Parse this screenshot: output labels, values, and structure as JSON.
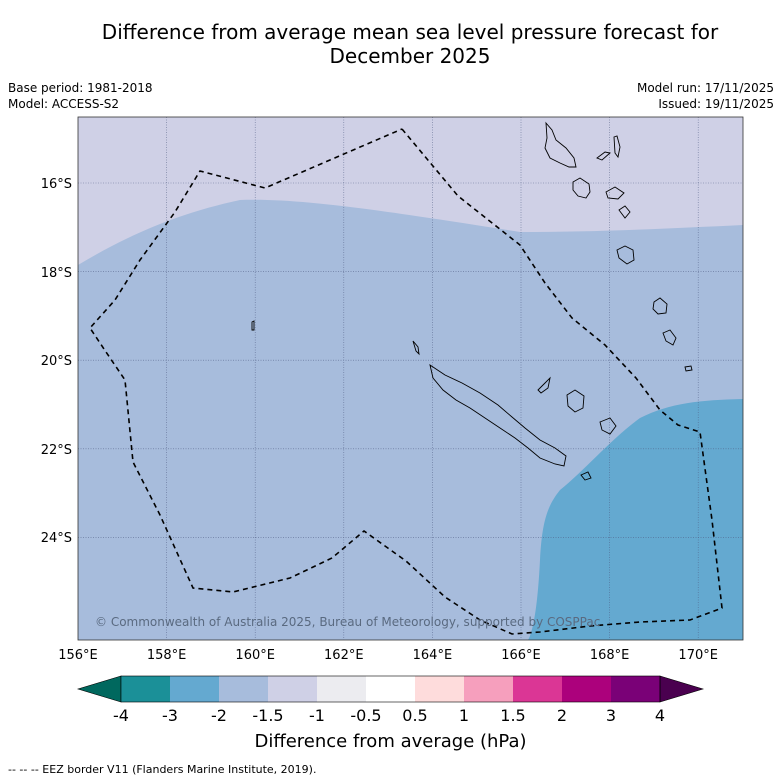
{
  "title_line1": "Difference from average mean sea level pressure forecast for",
  "title_line2": "December 2025",
  "base_period": "Base period: 1981-2018",
  "model": "Model: ACCESS-S2",
  "model_run": "Model run: 17/11/2025",
  "issued": "Issued: 19/11/2025",
  "copyright": "© Commonwealth of Australia 2025, Bureau of Meteorology, supported by COSPPac",
  "lon_labels": [
    "156°E",
    "158°E",
    "160°E",
    "162°E",
    "164°E",
    "166°E",
    "168°E",
    "170°E"
  ],
  "lat_labels": [
    "16°S",
    "18°S",
    "20°S",
    "22°S",
    "24°S"
  ],
  "colorbar": {
    "ticks": [
      "-4",
      "-3",
      "-2",
      "-1.5",
      "-1",
      "-0.5",
      "0.5",
      "1",
      "1.5",
      "2",
      "3",
      "4"
    ],
    "colors": [
      "#1b9098",
      "#64a9d0",
      "#a7bcdc",
      "#cfd0e6",
      "#ececf0",
      "#ffffff",
      "#fedcdc",
      "#f69fbd",
      "#db3695",
      "#ac017c",
      "#7a0177"
    ],
    "under_color": "#00685e",
    "over_color": "#4a004f",
    "label": "Difference from average (hPa)"
  },
  "map_fill": {
    "band_-1.5_to_-1": "#cfd0e6",
    "band_-2_to_-1.5": "#a7bcdc",
    "band_-3_to_-2": "#64a9d0"
  },
  "legend_footer": "--  --  -- EEZ border V11 (Flanders Marine Institute, 2019)."
}
